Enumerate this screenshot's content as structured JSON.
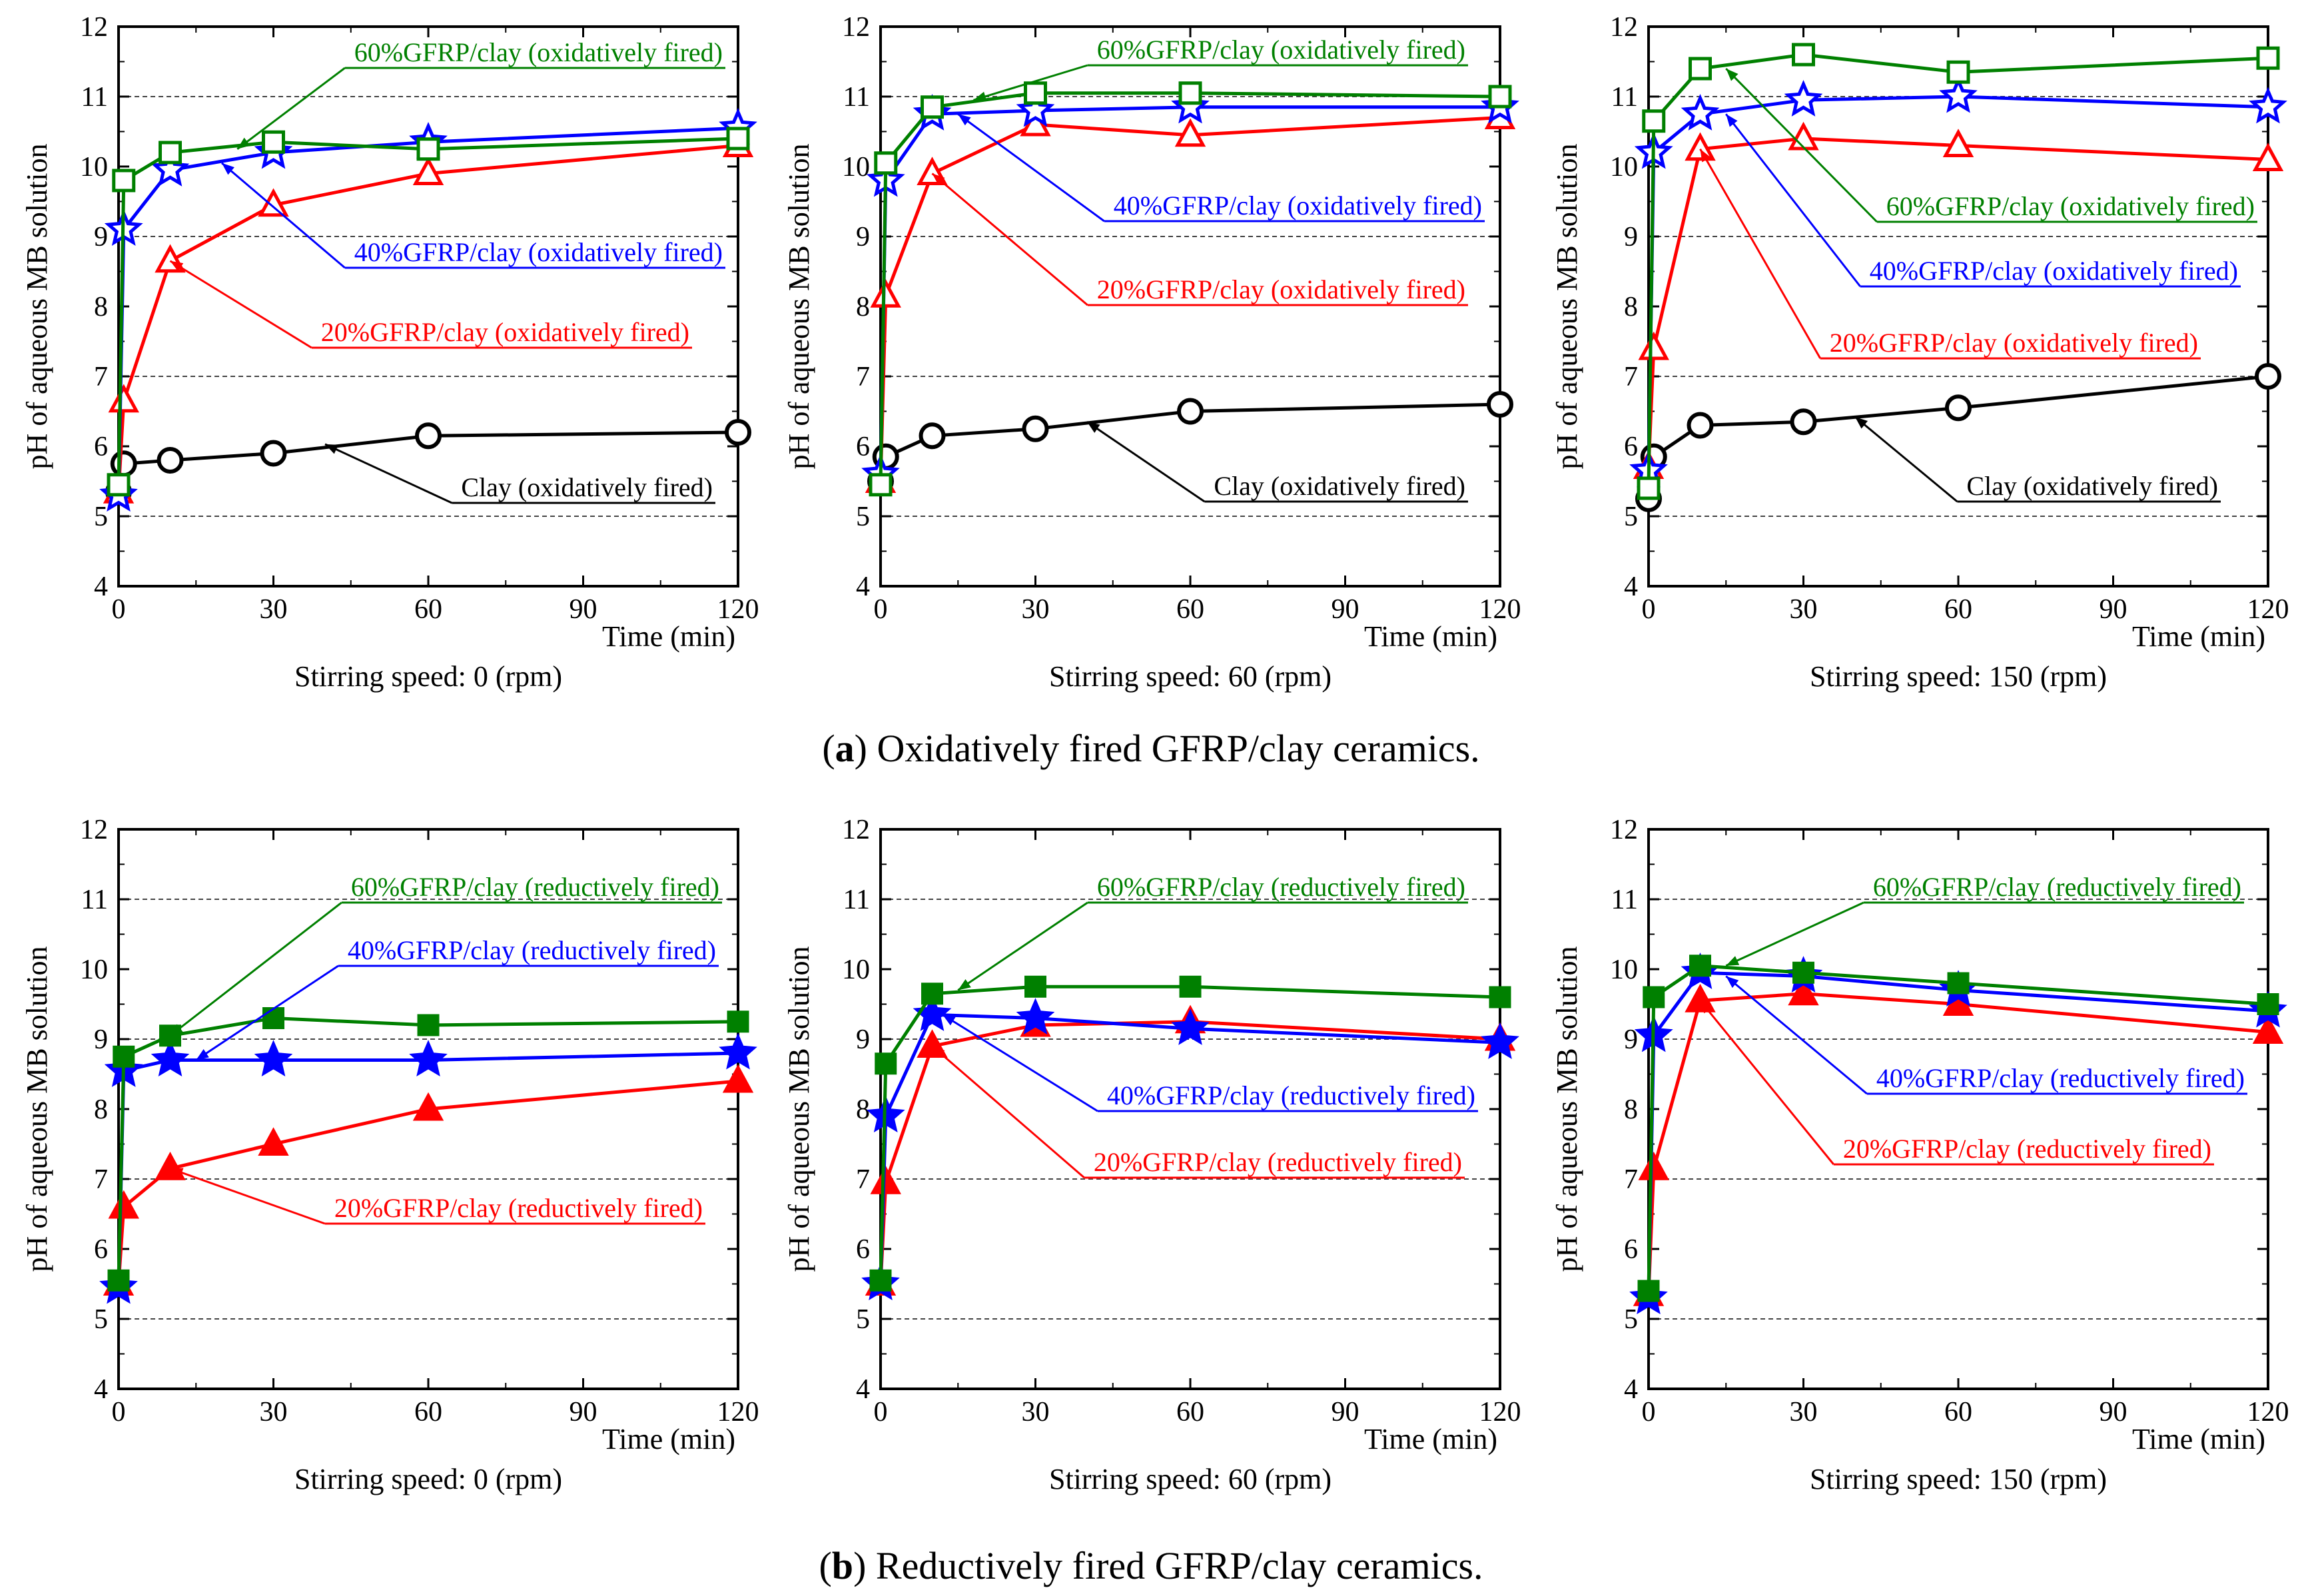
{
  "figure": {
    "caption_a_label": "a",
    "caption_a_text": ") Oxidatively fired GFRP/clay ceramics.",
    "caption_b_label": "b",
    "caption_b_text": ") Reductively fired GFRP/clay ceramics."
  },
  "colors": {
    "clay": "#000000",
    "g20": "#ff0000",
    "g40": "#0000ff",
    "g60": "#008000"
  },
  "chart_data": [
    {
      "type": "line",
      "row": "a",
      "ylabel": "pH of aqueous MB solution",
      "xlabel": "Time (min)",
      "subtitle": "Stirring speed: 0 (rpm)",
      "xlim": [
        0,
        120
      ],
      "ylim": [
        4,
        12
      ],
      "xticks": [
        0,
        30,
        60,
        90,
        120
      ],
      "yticks": [
        4,
        5,
        6,
        7,
        8,
        9,
        10,
        11,
        12
      ],
      "grid_y": [
        5,
        7,
        9,
        11
      ],
      "series": [
        {
          "key": "clay",
          "name": "Clay (oxidatively fired)",
          "marker": "circle",
          "x": [
            0,
            1,
            10,
            30,
            60,
            120
          ],
          "y": [
            5.35,
            5.75,
            5.8,
            5.9,
            6.15,
            6.2
          ]
        },
        {
          "key": "g20",
          "name": "20%GFRP/clay (oxidatively fired)",
          "marker": "triangle",
          "x": [
            0,
            1,
            10,
            30,
            60,
            120
          ],
          "y": [
            5.35,
            6.65,
            8.65,
            9.45,
            9.9,
            10.3
          ]
        },
        {
          "key": "g40",
          "name": "40%GFRP/clay (oxidatively fired)",
          "marker": "star",
          "x": [
            0,
            1,
            10,
            30,
            60,
            120
          ],
          "y": [
            5.3,
            9.1,
            9.95,
            10.2,
            10.35,
            10.55
          ]
        },
        {
          "key": "g60",
          "name": "60%GFRP/clay (oxidatively fired)",
          "marker": "square-open",
          "x": [
            0,
            1,
            10,
            30,
            60,
            120
          ],
          "y": [
            5.45,
            9.8,
            10.2,
            10.35,
            10.25,
            10.4
          ]
        }
      ]
    },
    {
      "type": "line",
      "row": "a",
      "ylabel": "pH of aqueous MB solution",
      "xlabel": "Time (min)",
      "subtitle": "Stirring speed: 60 (rpm)",
      "xlim": [
        0,
        120
      ],
      "ylim": [
        4,
        12
      ],
      "xticks": [
        0,
        30,
        60,
        90,
        120
      ],
      "yticks": [
        4,
        5,
        6,
        7,
        8,
        9,
        10,
        11,
        12
      ],
      "grid_y": [
        5,
        7,
        9,
        11
      ],
      "series": [
        {
          "key": "clay",
          "name": "Clay (oxidatively fired)",
          "marker": "circle",
          "x": [
            0,
            1,
            10,
            30,
            60,
            120
          ],
          "y": [
            5.5,
            5.85,
            6.15,
            6.25,
            6.5,
            6.6
          ]
        },
        {
          "key": "g20",
          "name": "20%GFRP/clay (oxidatively fired)",
          "marker": "triangle",
          "x": [
            0,
            1,
            10,
            30,
            60,
            120
          ],
          "y": [
            5.5,
            8.15,
            9.9,
            10.6,
            10.45,
            10.7
          ]
        },
        {
          "key": "g40",
          "name": "40%GFRP/clay (oxidatively fired)",
          "marker": "star",
          "x": [
            0,
            1,
            10,
            30,
            60,
            120
          ],
          "y": [
            5.6,
            9.8,
            10.75,
            10.8,
            10.85,
            10.85
          ]
        },
        {
          "key": "g60",
          "name": "60%GFRP/clay (oxidatively fired)",
          "marker": "square-open",
          "x": [
            0,
            1,
            10,
            30,
            60,
            120
          ],
          "y": [
            5.45,
            10.05,
            10.85,
            11.05,
            11.05,
            11.0
          ]
        }
      ]
    },
    {
      "type": "line",
      "row": "a",
      "ylabel": "pH of aqueous MB solution",
      "xlabel": "Time (min)",
      "subtitle": "Stirring speed: 150 (rpm)",
      "xlim": [
        0,
        120
      ],
      "ylim": [
        4,
        12
      ],
      "xticks": [
        0,
        30,
        60,
        90,
        120
      ],
      "yticks": [
        4,
        5,
        6,
        7,
        8,
        9,
        10,
        11,
        12
      ],
      "grid_y": [
        5,
        7,
        9,
        11
      ],
      "series": [
        {
          "key": "clay",
          "name": "Clay (oxidatively fired)",
          "marker": "circle",
          "x": [
            0,
            1,
            10,
            30,
            60,
            120
          ],
          "y": [
            5.25,
            5.85,
            6.3,
            6.35,
            6.55,
            7.0
          ]
        },
        {
          "key": "g20",
          "name": "20%GFRP/clay (oxidatively fired)",
          "marker": "triangle",
          "x": [
            0,
            1,
            10,
            30,
            60,
            120
          ],
          "y": [
            5.7,
            7.4,
            10.25,
            10.4,
            10.3,
            10.1
          ]
        },
        {
          "key": "g40",
          "name": "40%GFRP/clay (oxidatively fired)",
          "marker": "star",
          "x": [
            0,
            1,
            10,
            30,
            60,
            120
          ],
          "y": [
            5.65,
            10.2,
            10.75,
            10.95,
            11.0,
            10.85
          ]
        },
        {
          "key": "g60",
          "name": "60%GFRP/clay (oxidatively fired)",
          "marker": "square-open",
          "x": [
            0,
            1,
            10,
            30,
            60,
            120
          ],
          "y": [
            5.4,
            10.65,
            11.4,
            11.6,
            11.35,
            11.55
          ]
        }
      ]
    },
    {
      "type": "line",
      "row": "b",
      "ylabel": "pH of aqueous MB solution",
      "xlabel": "Time (min)",
      "subtitle": "Stirring speed: 0 (rpm)",
      "xlim": [
        0,
        120
      ],
      "ylim": [
        4,
        12
      ],
      "xticks": [
        0,
        30,
        60,
        90,
        120
      ],
      "yticks": [
        4,
        5,
        6,
        7,
        8,
        9,
        10,
        11,
        12
      ],
      "grid_y": [
        5,
        7,
        9,
        11
      ],
      "series": [
        {
          "key": "g20",
          "name": "20%GFRP/clay (reductively fired)",
          "marker": "triangle-filled",
          "x": [
            0,
            1,
            10,
            30,
            60,
            120
          ],
          "y": [
            5.5,
            6.6,
            7.15,
            7.5,
            8.0,
            8.4
          ]
        },
        {
          "key": "g40",
          "name": "40%GFRP/clay (reductively fired)",
          "marker": "star-filled",
          "x": [
            0,
            1,
            10,
            30,
            60,
            120
          ],
          "y": [
            5.45,
            8.55,
            8.7,
            8.7,
            8.7,
            8.8
          ]
        },
        {
          "key": "g60",
          "name": "60%GFRP/clay (reductively fired)",
          "marker": "square-filled",
          "x": [
            0,
            1,
            10,
            30,
            60,
            120
          ],
          "y": [
            5.55,
            8.75,
            9.05,
            9.3,
            9.2,
            9.25
          ]
        }
      ]
    },
    {
      "type": "line",
      "row": "b",
      "ylabel": "pH of aqueous MB solution",
      "xlabel": "Time (min)",
      "subtitle": "Stirring speed: 60 (rpm)",
      "xlim": [
        0,
        120
      ],
      "ylim": [
        4,
        12
      ],
      "xticks": [
        0,
        30,
        60,
        90,
        120
      ],
      "yticks": [
        4,
        5,
        6,
        7,
        8,
        9,
        10,
        11,
        12
      ],
      "grid_y": [
        5,
        7,
        9,
        11
      ],
      "series": [
        {
          "key": "g20",
          "name": "20%GFRP/clay (reductively fired)",
          "marker": "triangle-filled",
          "x": [
            0,
            1,
            10,
            30,
            60,
            120
          ],
          "y": [
            5.5,
            6.95,
            8.9,
            9.2,
            9.25,
            9.0
          ]
        },
        {
          "key": "g40",
          "name": "40%GFRP/clay (reductively fired)",
          "marker": "star-filled",
          "x": [
            0,
            1,
            10,
            30,
            60,
            120
          ],
          "y": [
            5.5,
            7.9,
            9.35,
            9.3,
            9.15,
            8.95
          ]
        },
        {
          "key": "g60",
          "name": "60%GFRP/clay (reductively fired)",
          "marker": "square-filled",
          "x": [
            0,
            1,
            10,
            30,
            60,
            120
          ],
          "y": [
            5.55,
            8.65,
            9.65,
            9.75,
            9.75,
            9.6
          ]
        }
      ]
    },
    {
      "type": "line",
      "row": "b",
      "ylabel": "pH of aqueous MB solution",
      "xlabel": "Time (min)",
      "subtitle": "Stirring speed: 150 (rpm)",
      "xlim": [
        0,
        120
      ],
      "ylim": [
        4,
        12
      ],
      "xticks": [
        0,
        30,
        60,
        90,
        120
      ],
      "yticks": [
        4,
        5,
        6,
        7,
        8,
        9,
        10,
        11,
        12
      ],
      "grid_y": [
        5,
        7,
        9,
        11
      ],
      "series": [
        {
          "key": "g20",
          "name": "20%GFRP/clay (reductively fired)",
          "marker": "triangle-filled",
          "x": [
            0,
            1,
            10,
            30,
            60,
            120
          ],
          "y": [
            5.35,
            7.15,
            9.55,
            9.65,
            9.5,
            9.1
          ]
        },
        {
          "key": "g40",
          "name": "40%GFRP/clay (reductively fired)",
          "marker": "star-filled",
          "x": [
            0,
            1,
            10,
            30,
            60,
            120
          ],
          "y": [
            5.3,
            9.05,
            9.95,
            9.9,
            9.7,
            9.4
          ]
        },
        {
          "key": "g60",
          "name": "60%GFRP/clay (reductively fired)",
          "marker": "square-filled",
          "x": [
            0,
            1,
            10,
            30,
            60,
            120
          ],
          "y": [
            5.4,
            9.6,
            10.05,
            9.95,
            9.8,
            9.5
          ]
        }
      ]
    }
  ]
}
